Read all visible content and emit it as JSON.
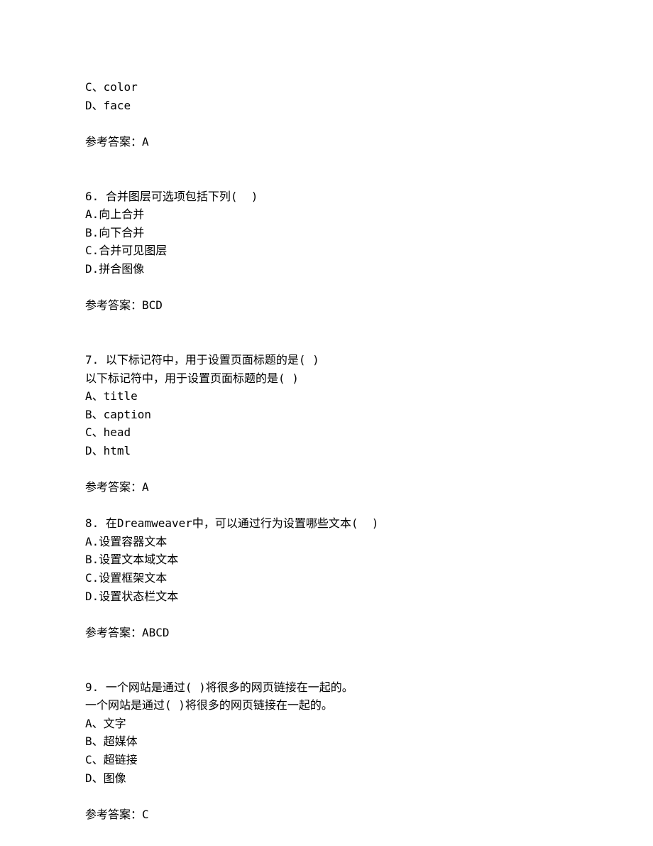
{
  "q5_partial": {
    "option_c": "C、color",
    "option_d": "D、face",
    "answer_label": "参考答案：",
    "answer": "A"
  },
  "q6": {
    "number": "6. ",
    "stem": "合并图层可选项包括下列(  )",
    "option_a": "A.向上合并",
    "option_b": "B.向下合并",
    "option_c": "C.合并可见图层",
    "option_d": "D.拼合图像",
    "answer_label": "参考答案：",
    "answer": "BCD"
  },
  "q7": {
    "number": "7. ",
    "stem": "以下标记符中，用于设置页面标题的是( )",
    "stem_repeat": "以下标记符中，用于设置页面标题的是( )",
    "option_a": "A、title",
    "option_b": "B、caption",
    "option_c": "C、head",
    "option_d": "D、html",
    "answer_label": "参考答案：",
    "answer": "A"
  },
  "q8": {
    "number": "8. ",
    "stem": "在Dreamweaver中，可以通过行为设置哪些文本(  )",
    "option_a": "A.设置容器文本",
    "option_b": "B.设置文本域文本",
    "option_c": "C.设置框架文本",
    "option_d": "D.设置状态栏文本",
    "answer_label": "参考答案：",
    "answer": "ABCD"
  },
  "q9": {
    "number": "9. ",
    "stem": "一个网站是通过( )将很多的网页链接在一起的。",
    "stem_repeat": "一个网站是通过( )将很多的网页链接在一起的。",
    "option_a": "A、文字",
    "option_b": "B、超媒体",
    "option_c": "C、超链接",
    "option_d": "D、图像",
    "answer_label": "参考答案：",
    "answer": "C"
  }
}
